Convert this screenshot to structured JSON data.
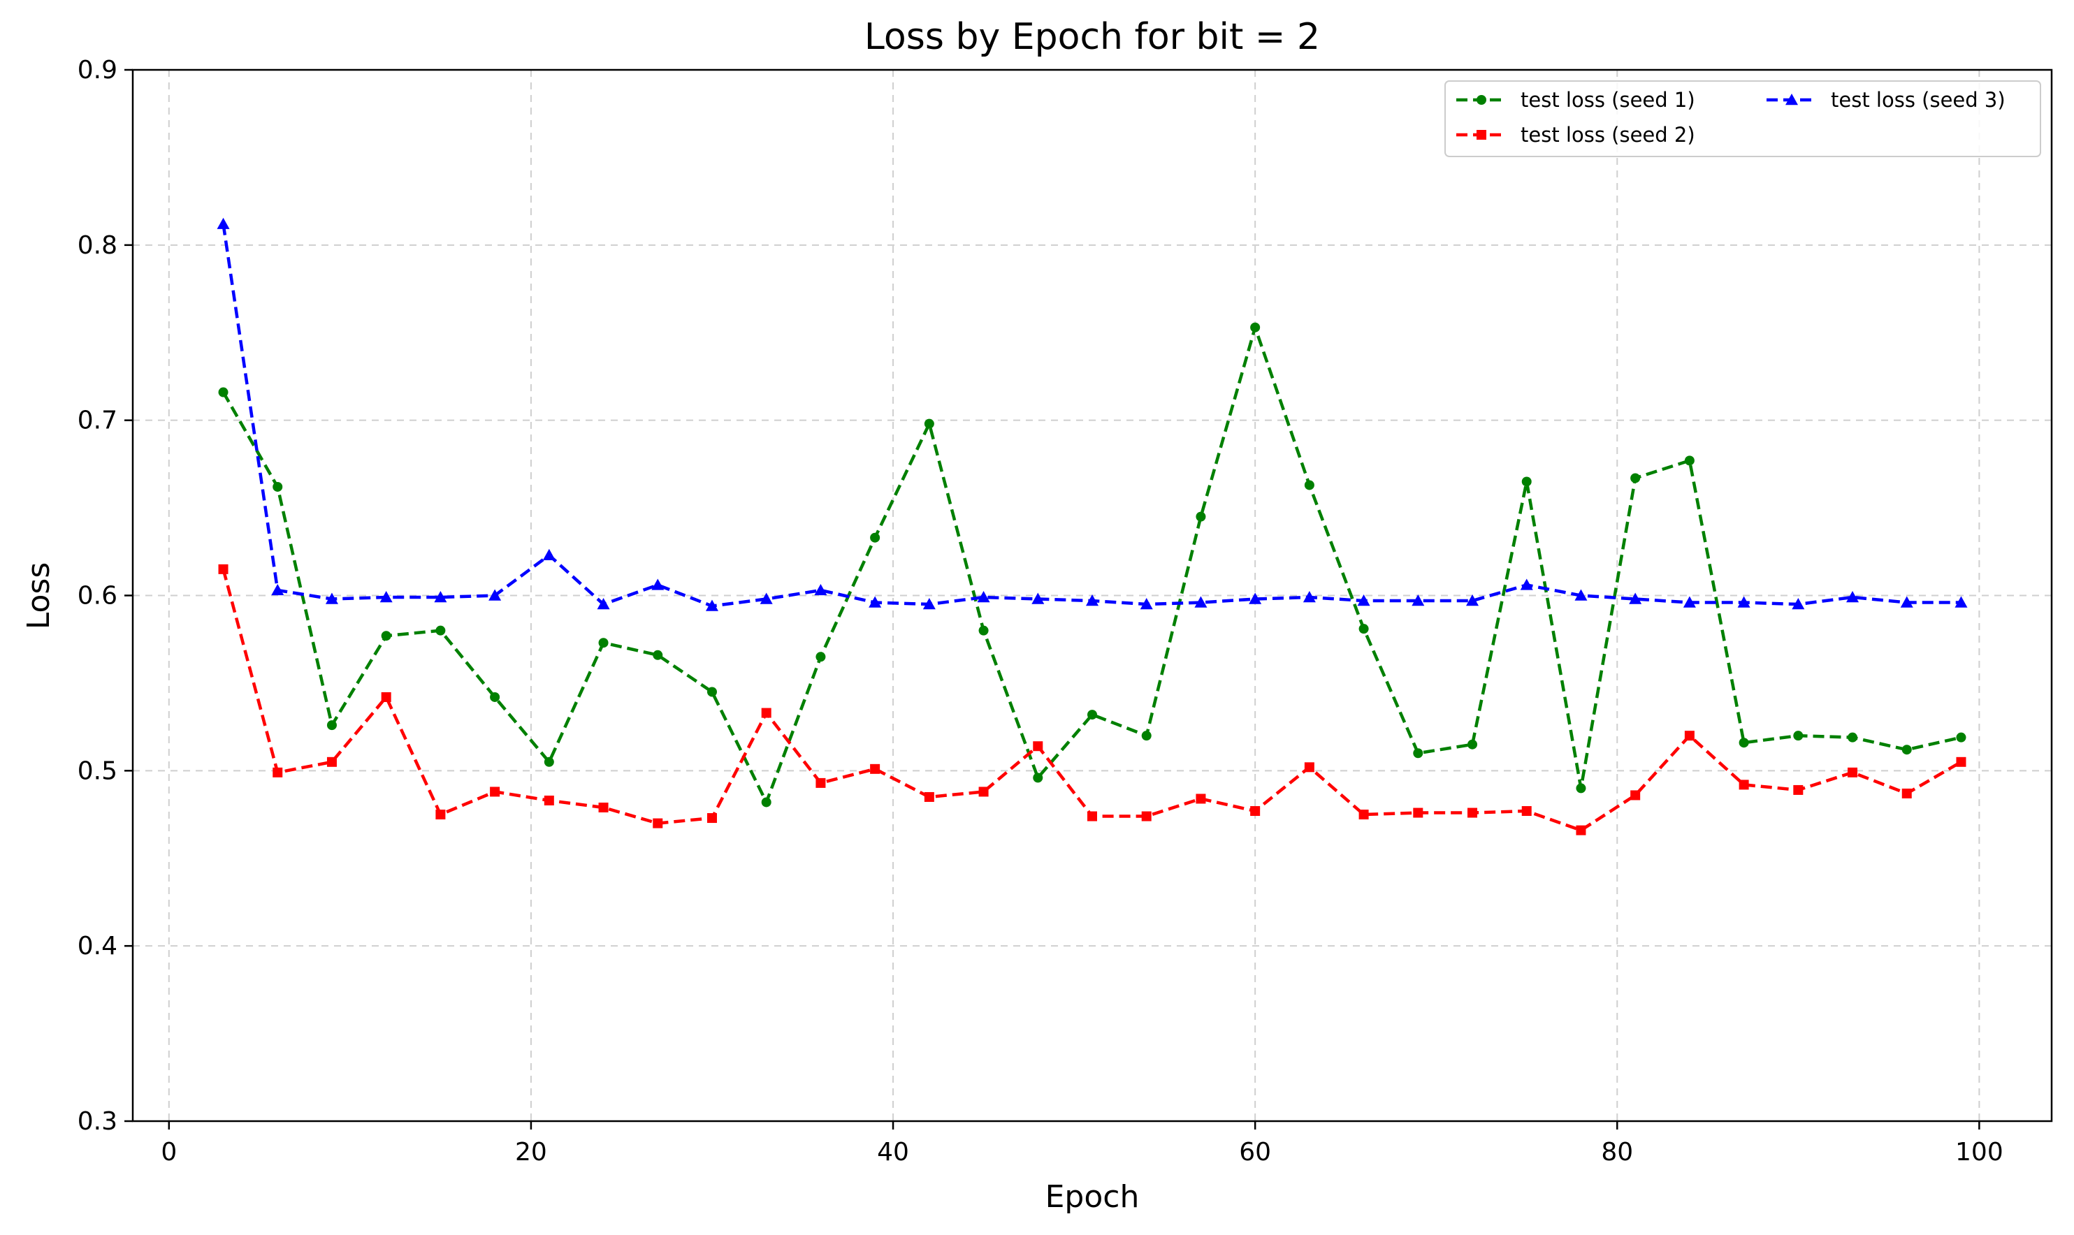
{
  "chart_data": {
    "type": "line",
    "title": "Loss by Epoch for bit = 2",
    "xlabel": "Epoch",
    "ylabel": "Loss",
    "xlim": [
      -2,
      104
    ],
    "ylim": [
      0.3,
      0.9
    ],
    "xticks": [
      0,
      20,
      40,
      60,
      80,
      100
    ],
    "yticks": [
      0.3,
      0.4,
      0.5,
      0.6,
      0.7,
      0.8,
      0.9
    ],
    "grid": true,
    "legend_position": "top-right",
    "x": [
      3,
      6,
      9,
      12,
      15,
      18,
      21,
      24,
      27,
      30,
      33,
      36,
      39,
      42,
      45,
      48,
      51,
      54,
      57,
      60,
      63,
      66,
      69,
      72,
      75,
      78,
      81,
      84,
      87,
      90,
      93,
      96,
      99
    ],
    "series": [
      {
        "name": "test loss (seed 1)",
        "color": "#008000",
        "marker": "circle",
        "values": [
          0.716,
          0.662,
          0.526,
          0.577,
          0.58,
          0.542,
          0.505,
          0.573,
          0.566,
          0.545,
          0.482,
          0.565,
          0.633,
          0.698,
          0.58,
          0.496,
          0.532,
          0.52,
          0.645,
          0.753,
          0.663,
          0.581,
          0.51,
          0.515,
          0.665,
          0.49,
          0.667,
          0.677,
          0.516,
          0.52,
          0.519,
          0.512,
          0.519
        ]
      },
      {
        "name": "test loss (seed 2)",
        "color": "#ff0000",
        "marker": "square",
        "values": [
          0.615,
          0.499,
          0.505,
          0.542,
          0.475,
          0.488,
          0.483,
          0.479,
          0.47,
          0.473,
          0.533,
          0.493,
          0.501,
          0.485,
          0.488,
          0.514,
          0.474,
          0.474,
          0.484,
          0.477,
          0.502,
          0.475,
          0.476,
          0.476,
          0.477,
          0.466,
          0.486,
          0.52,
          0.492,
          0.489,
          0.499,
          0.487,
          0.505
        ]
      },
      {
        "name": "test loss (seed 3)",
        "color": "#0000ff",
        "marker": "triangle",
        "values": [
          0.812,
          0.603,
          0.598,
          0.599,
          0.599,
          0.6,
          0.623,
          0.595,
          0.606,
          0.594,
          0.598,
          0.603,
          0.596,
          0.595,
          0.599,
          0.598,
          0.597,
          0.595,
          0.596,
          0.598,
          0.599,
          0.597,
          0.597,
          0.597,
          0.606,
          0.6,
          0.598,
          0.596,
          0.596,
          0.595,
          0.599,
          0.596,
          0.596
        ]
      }
    ]
  }
}
